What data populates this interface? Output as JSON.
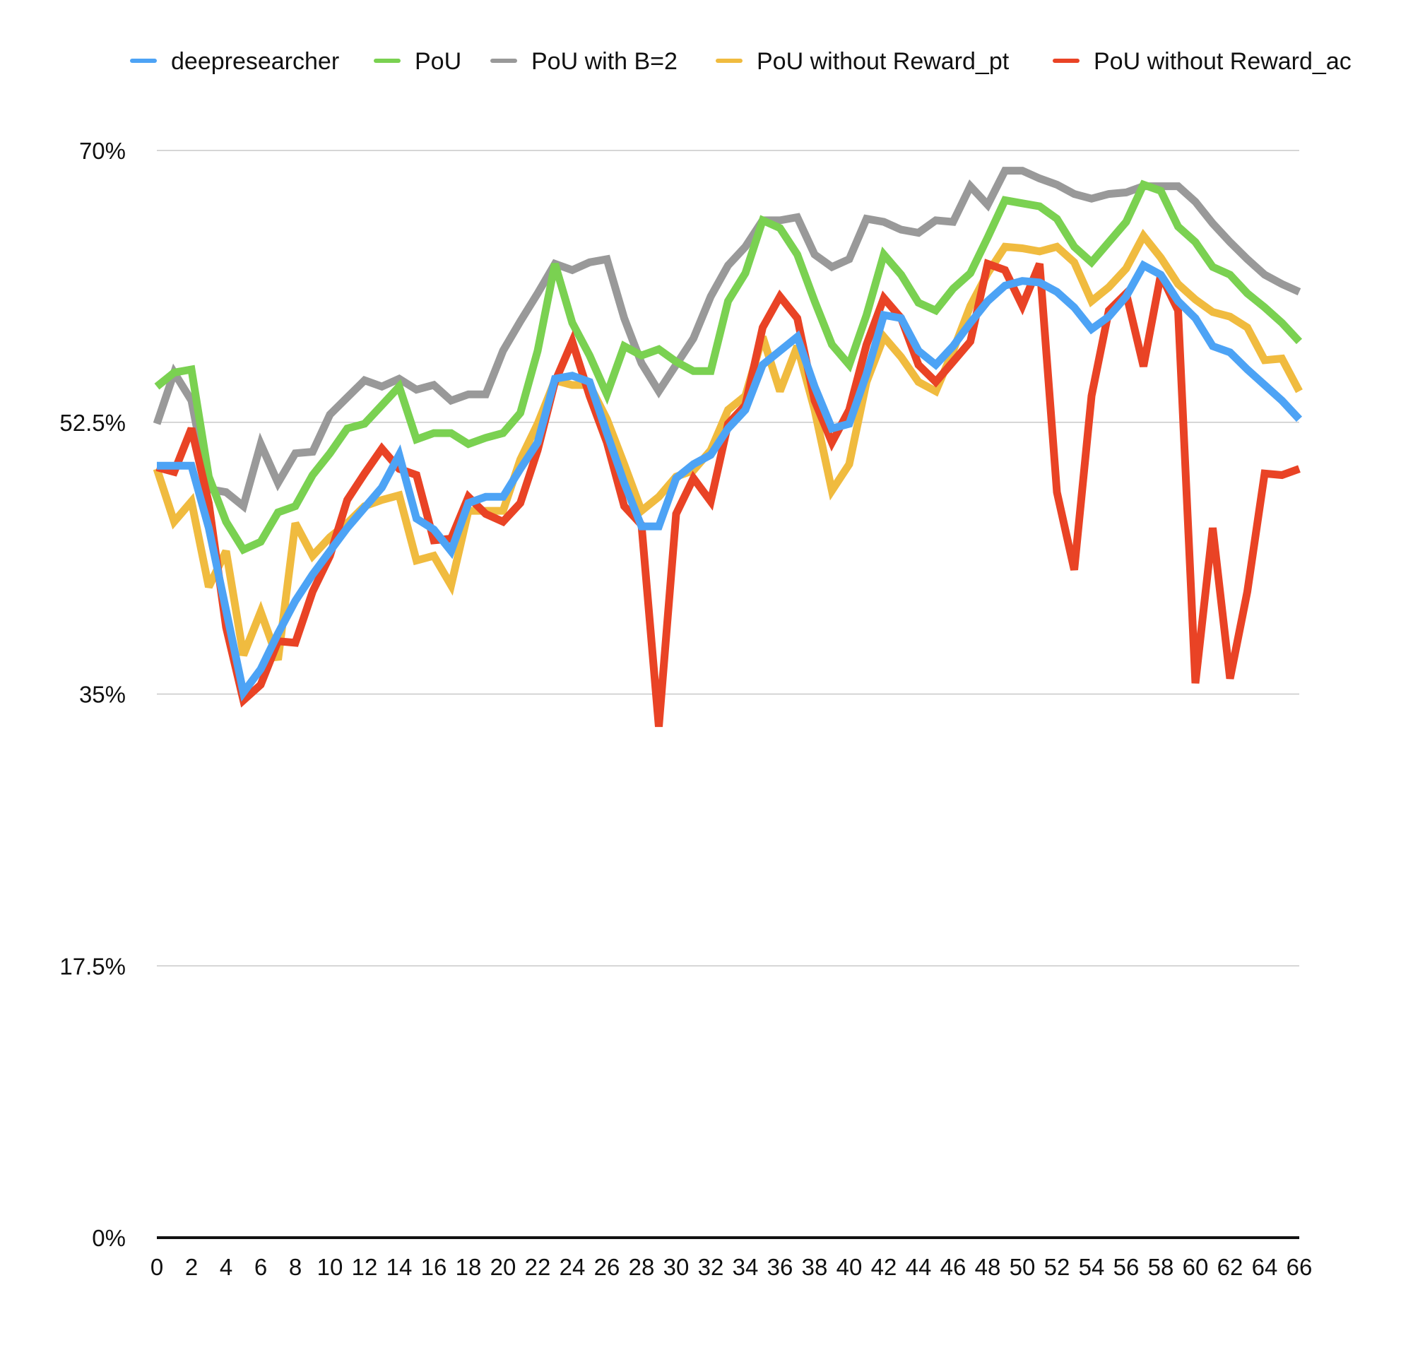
{
  "chart_data": {
    "type": "line",
    "title": "",
    "xlabel": "",
    "ylabel": "",
    "ylim": [
      0,
      70
    ],
    "y_ticks": [
      "0%",
      "17.5%",
      "35%",
      "52.5%",
      "70%"
    ],
    "y_tick_values": [
      0,
      17.5,
      35,
      52.5,
      70
    ],
    "x_tick_labels": [
      "0",
      "2",
      "4",
      "6",
      "8",
      "10",
      "12",
      "14",
      "16",
      "18",
      "20",
      "22",
      "24",
      "26",
      "28",
      "30",
      "32",
      "34",
      "36",
      "38",
      "40",
      "42",
      "44",
      "46",
      "48",
      "50",
      "52",
      "54",
      "56",
      "58",
      "60",
      "62",
      "64",
      "66"
    ],
    "xlim": [
      0,
      66
    ],
    "grid": true,
    "legend_position": "top",
    "series": [
      {
        "name": "deepresearcher",
        "color": "#4da3f5",
        "values": [
          49.7,
          49.7,
          49.7,
          45.7,
          40.4,
          35.1,
          36.6,
          38.9,
          41.0,
          42.7,
          44.2,
          45.7,
          47.0,
          48.3,
          50.4,
          46.3,
          45.6,
          44.2,
          47.3,
          47.7,
          47.7,
          49.5,
          51.2,
          55.3,
          55.5,
          55.1,
          51.8,
          48.6,
          45.8,
          45.8,
          48.9,
          49.8,
          50.4,
          52.1,
          53.3,
          56.2,
          57.1,
          58.0,
          54.8,
          52.1,
          52.4,
          55.6,
          59.4,
          59.2,
          57.1,
          56.2,
          57.4,
          58.9,
          60.3,
          61.3,
          61.6,
          61.5,
          60.9,
          59.9,
          58.5,
          59.3,
          60.6,
          62.6,
          62.0,
          60.3,
          59.2,
          57.4,
          57.0,
          55.9,
          54.9,
          53.9,
          52.7
        ]
      },
      {
        "name": "PoU",
        "color": "#7ad151",
        "values": [
          54.8,
          55.7,
          55.9,
          49.0,
          46.1,
          44.3,
          44.8,
          46.7,
          47.1,
          49.1,
          50.5,
          52.1,
          52.4,
          53.6,
          54.8,
          51.4,
          51.8,
          51.8,
          51.1,
          51.5,
          51.8,
          53.1,
          57.1,
          62.7,
          58.9,
          56.8,
          54.3,
          57.4,
          56.8,
          57.2,
          56.4,
          55.8,
          55.8,
          60.3,
          62.1,
          65.5,
          65.0,
          63.3,
          60.3,
          57.5,
          56.2,
          59.4,
          63.3,
          62.0,
          60.2,
          59.7,
          61.1,
          62.1,
          64.4,
          66.8,
          66.6,
          66.4,
          65.6,
          63.8,
          62.8,
          64.1,
          65.4,
          67.8,
          67.4,
          65.1,
          64.1,
          62.5,
          62.0,
          60.8,
          59.9,
          58.9,
          57.7
        ]
      },
      {
        "name": "PoU with B=2",
        "color": "#999999",
        "values": [
          52.4,
          55.7,
          53.9,
          48.2,
          48.0,
          47.1,
          51.1,
          48.6,
          50.5,
          50.6,
          53.0,
          54.1,
          55.2,
          54.8,
          55.3,
          54.6,
          54.9,
          53.9,
          54.3,
          54.3,
          57.1,
          59.0,
          60.8,
          62.7,
          62.3,
          62.8,
          63.0,
          59.2,
          56.3,
          54.5,
          56.2,
          57.9,
          60.6,
          62.6,
          63.8,
          65.5,
          65.5,
          65.7,
          63.3,
          62.5,
          63.0,
          65.6,
          65.4,
          64.9,
          64.7,
          65.5,
          65.4,
          67.7,
          66.5,
          68.7,
          68.7,
          68.2,
          67.8,
          67.2,
          66.9,
          67.2,
          67.3,
          67.7,
          67.7,
          67.7,
          66.7,
          65.3,
          64.1,
          63.0,
          62.0,
          61.4,
          60.9
        ]
      },
      {
        "name": "PoU without Reward_pt",
        "color": "#f0bb3f",
        "values": [
          49.5,
          46.1,
          47.4,
          41.9,
          44.2,
          37.5,
          40.3,
          37.2,
          46.0,
          43.9,
          45.1,
          46.0,
          47.1,
          47.5,
          47.8,
          43.6,
          43.9,
          42.0,
          46.8,
          46.8,
          46.8,
          50.1,
          52.4,
          55.2,
          54.9,
          54.9,
          52.7,
          49.8,
          46.8,
          47.7,
          49.0,
          49.4,
          50.7,
          53.3,
          54.2,
          58.0,
          54.5,
          57.4,
          53.3,
          48.1,
          49.8,
          55.1,
          58.0,
          56.7,
          55.1,
          54.5,
          57.1,
          60.0,
          62.1,
          63.8,
          63.7,
          63.5,
          63.8,
          62.8,
          60.3,
          61.2,
          62.4,
          64.5,
          63.1,
          61.4,
          60.4,
          59.6,
          59.3,
          58.6,
          56.5,
          56.6,
          54.5
        ]
      },
      {
        "name": "PoU without Reward_ac",
        "color": "#e94325",
        "values": [
          49.6,
          49.3,
          52.1,
          47.3,
          39.3,
          34.6,
          35.6,
          38.4,
          38.3,
          41.6,
          43.9,
          47.5,
          49.2,
          50.8,
          49.5,
          49.1,
          44.9,
          45.0,
          47.7,
          46.6,
          46.1,
          47.3,
          50.7,
          55.1,
          57.7,
          54.2,
          51.2,
          47.1,
          45.9,
          32.9,
          46.6,
          48.9,
          47.4,
          52.4,
          53.6,
          58.6,
          60.6,
          59.2,
          53.9,
          51.2,
          53.3,
          57.5,
          60.5,
          59.2,
          56.2,
          55.1,
          56.4,
          57.7,
          62.7,
          62.3,
          60.0,
          62.7,
          48.0,
          43.0,
          54.2,
          59.7,
          60.8,
          56.1,
          62.0,
          59.7,
          35.7,
          45.7,
          36.0,
          41.6,
          49.2,
          49.1,
          49.5
        ]
      }
    ]
  }
}
